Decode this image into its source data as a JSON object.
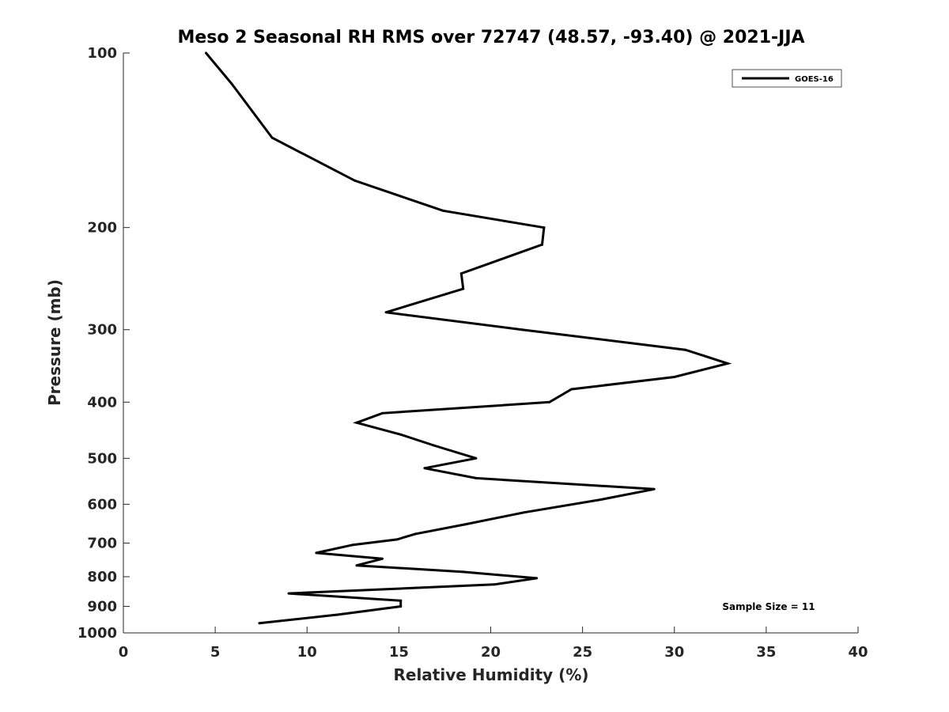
{
  "chart_data": {
    "type": "line",
    "title": "Meso 2 Seasonal RH RMS over 72747 (48.57, -93.40) @ 2021-JJA",
    "xlabel": "Relative Humidity (%)",
    "ylabel": "Pressure (mb)",
    "xlim": [
      0,
      40
    ],
    "ylim": [
      1000,
      100
    ],
    "yscale": "log",
    "xticks": [
      0,
      5,
      10,
      15,
      20,
      25,
      30,
      35,
      40
    ],
    "yticks": [
      100,
      200,
      300,
      400,
      500,
      600,
      700,
      800,
      900,
      1000
    ],
    "legend": {
      "entries": [
        "GOES-16"
      ],
      "location": "top-right"
    },
    "annotation": "Sample Size = 11",
    "line_color": "#000000",
    "series": [
      {
        "name": "GOES-16",
        "x": [
          4.5,
          5.9,
          8.1,
          12.6,
          17.4,
          22.9,
          22.8,
          18.4,
          18.5,
          14.3,
          21.7,
          30.6,
          32.9,
          30.0,
          24.4,
          23.2,
          14.1,
          12.7,
          15.1,
          16.9,
          19.2,
          16.4,
          19.2,
          28.9,
          26.0,
          21.8,
          18.6,
          15.9,
          14.9,
          12.5,
          10.5,
          14.1,
          12.7,
          18.5,
          22.5,
          20.2,
          9.0,
          15.1,
          15.1,
          11.7,
          7.4
        ],
        "y": [
          100,
          113,
          140,
          166,
          187,
          200,
          214,
          240,
          255,
          280,
          300,
          325,
          343,
          362,
          380,
          400,
          418,
          434,
          455,
          475,
          500,
          520,
          541,
          565,
          589,
          620,
          650,
          675,
          690,
          705,
          728,
          745,
          765,
          785,
          805,
          825,
          855,
          880,
          900,
          930,
          962
        ]
      }
    ]
  }
}
